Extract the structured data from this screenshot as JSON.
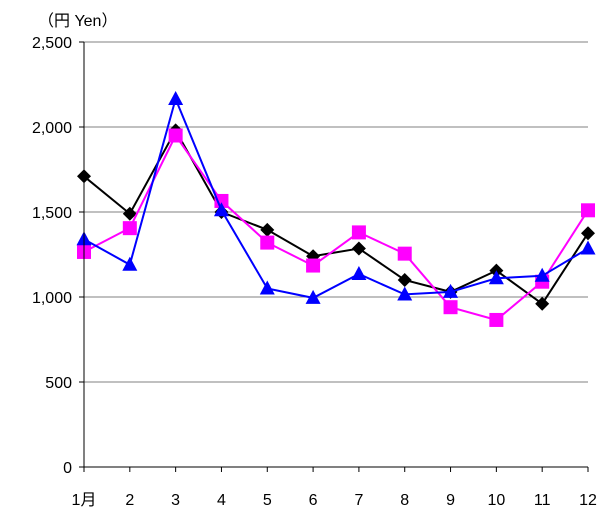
{
  "chart_data": {
    "type": "line",
    "unit_label": "（円  Yen）",
    "categories": [
      "1月",
      "2",
      "3",
      "4",
      "5",
      "6",
      "7",
      "8",
      "9",
      "10",
      "11",
      "12"
    ],
    "ylim": [
      0,
      2500
    ],
    "yticks": [
      0,
      500,
      1000,
      1500,
      2000,
      2500
    ],
    "ytick_labels": [
      "0",
      "500",
      "1,000",
      "1,500",
      "2,000",
      "2,500"
    ],
    "grid": true,
    "series": [
      {
        "color": "#000000",
        "marker": "diamond",
        "values": [
          1710,
          1490,
          1980,
          1500,
          1395,
          1240,
          1285,
          1100,
          1030,
          1155,
          960,
          1375
        ]
      },
      {
        "color": "#ff00ff",
        "marker": "square",
        "values": [
          1265,
          1405,
          1950,
          1565,
          1320,
          1185,
          1380,
          1255,
          940,
          865,
          1090,
          1510
        ]
      },
      {
        "color": "#0000ff",
        "marker": "triangle",
        "values": [
          1340,
          1190,
          2165,
          1510,
          1050,
          995,
          1135,
          1015,
          1030,
          1110,
          1125,
          1285
        ]
      }
    ]
  }
}
